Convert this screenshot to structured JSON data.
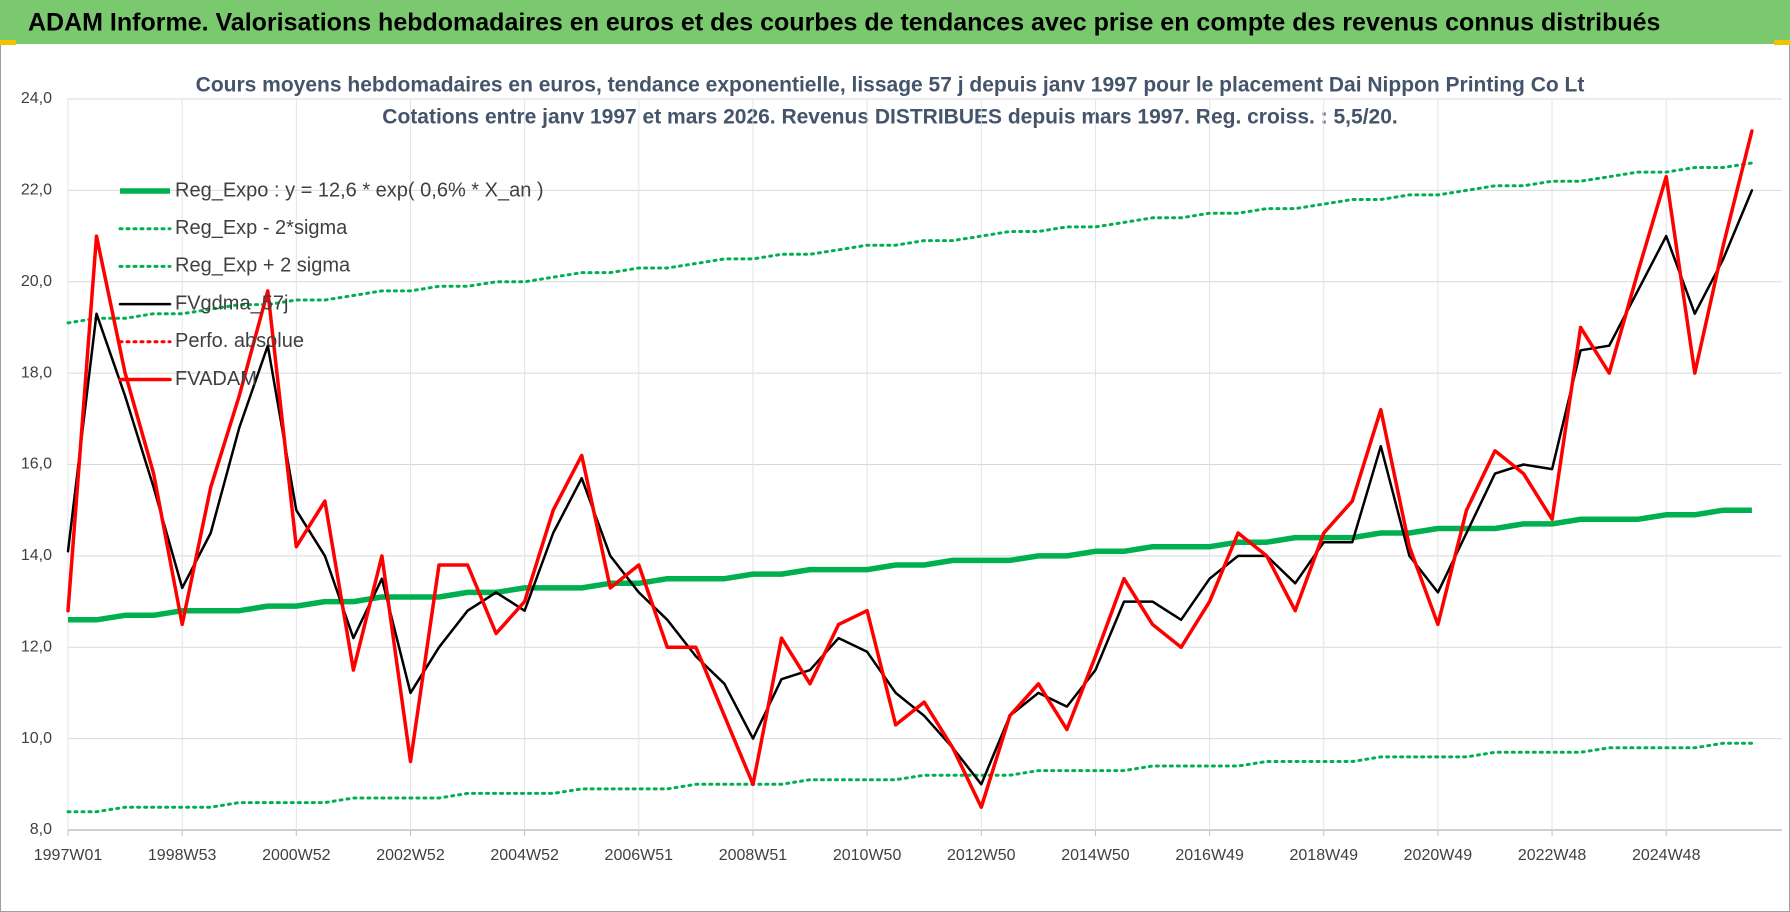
{
  "header": {
    "title": "ADAM Informe. Valorisations hebdomadaires en euros et des courbes de tendances avec prise en compte des revenus connus distribués"
  },
  "chart_data": {
    "type": "line",
    "title": "Cours moyens hebdomadaires en euros, tendance exponentielle, lissage 57 j depuis janv 1997  pour le placement Dai Nippon Printing Co Lt",
    "subtitle": "Cotations entre janv 1997 et mars 2026. Revenus DISTRIBUES depuis mars 1997.  Reg. croiss. : 5,5/20.",
    "categories": [
      "1997W01",
      null,
      null,
      null,
      "1998W53",
      null,
      null,
      null,
      "2000W52",
      null,
      null,
      null,
      "2002W52",
      null,
      null,
      null,
      "2004W52",
      null,
      null,
      null,
      "2006W51",
      null,
      null,
      null,
      "2008W51",
      null,
      null,
      null,
      "2010W50",
      null,
      null,
      null,
      "2012W50",
      null,
      null,
      null,
      "2014W50",
      null,
      null,
      null,
      "2016W49",
      null,
      null,
      null,
      "2018W49",
      null,
      null,
      null,
      "2020W49",
      null,
      null,
      null,
      "2022W48",
      null,
      null,
      null,
      "2024W48",
      null,
      null,
      null
    ],
    "ylim": [
      8,
      24
    ],
    "yticks": [
      {
        "value": 8,
        "label": "8,0"
      },
      {
        "value": 10,
        "label": "10,0"
      },
      {
        "value": 12,
        "label": "12,0"
      },
      {
        "value": 14,
        "label": "14,0"
      },
      {
        "value": 16,
        "label": "16,0"
      },
      {
        "value": 18,
        "label": "18,0"
      },
      {
        "value": 20,
        "label": "20,0"
      },
      {
        "value": 22,
        "label": "22,0"
      },
      {
        "value": 24,
        "label": "24,0"
      }
    ],
    "grid": true,
    "legend": "upper left",
    "series": [
      {
        "name": "Reg_Expo : y = 12,6 * exp( 0,6% *  X_an )",
        "color": "#00b050",
        "line_style": "solid",
        "values": [
          12.6,
          12.6,
          12.7,
          12.7,
          12.8,
          12.8,
          12.8,
          12.9,
          12.9,
          13.0,
          13.0,
          13.1,
          13.1,
          13.1,
          13.2,
          13.2,
          13.3,
          13.3,
          13.3,
          13.4,
          13.4,
          13.5,
          13.5,
          13.5,
          13.6,
          13.6,
          13.7,
          13.7,
          13.7,
          13.8,
          13.8,
          13.9,
          13.9,
          13.9,
          14.0,
          14.0,
          14.1,
          14.1,
          14.2,
          14.2,
          14.2,
          14.3,
          14.3,
          14.4,
          14.4,
          14.4,
          14.5,
          14.5,
          14.6,
          14.6,
          14.6,
          14.7,
          14.7,
          14.8,
          14.8,
          14.8,
          14.9,
          14.9,
          15.0,
          15.0
        ]
      },
      {
        "name": "Reg_Exp - 2*sigma",
        "color": "#00b050",
        "line_style": "dotted",
        "values": [
          8.4,
          8.4,
          8.5,
          8.5,
          8.5,
          8.5,
          8.6,
          8.6,
          8.6,
          8.6,
          8.7,
          8.7,
          8.7,
          8.7,
          8.8,
          8.8,
          8.8,
          8.8,
          8.9,
          8.9,
          8.9,
          8.9,
          9.0,
          9.0,
          9.0,
          9.0,
          9.1,
          9.1,
          9.1,
          9.1,
          9.2,
          9.2,
          9.2,
          9.2,
          9.3,
          9.3,
          9.3,
          9.3,
          9.4,
          9.4,
          9.4,
          9.4,
          9.5,
          9.5,
          9.5,
          9.5,
          9.6,
          9.6,
          9.6,
          9.6,
          9.7,
          9.7,
          9.7,
          9.7,
          9.8,
          9.8,
          9.8,
          9.8,
          9.9,
          9.9
        ]
      },
      {
        "name": "Reg_Exp + 2 sigma",
        "color": "#00b050",
        "line_style": "dotted",
        "values": [
          19.1,
          19.2,
          19.2,
          19.3,
          19.3,
          19.4,
          19.5,
          19.5,
          19.6,
          19.6,
          19.7,
          19.8,
          19.8,
          19.9,
          19.9,
          20.0,
          20.0,
          20.1,
          20.2,
          20.2,
          20.3,
          20.3,
          20.4,
          20.5,
          20.5,
          20.6,
          20.6,
          20.7,
          20.8,
          20.8,
          20.9,
          20.9,
          21.0,
          21.1,
          21.1,
          21.2,
          21.2,
          21.3,
          21.4,
          21.4,
          21.5,
          21.5,
          21.6,
          21.6,
          21.7,
          21.8,
          21.8,
          21.9,
          21.9,
          22.0,
          22.1,
          22.1,
          22.2,
          22.2,
          22.3,
          22.4,
          22.4,
          22.5,
          22.5,
          22.6
        ]
      },
      {
        "name": "FVgdma_57j",
        "color": "#000000",
        "line_style": "solid",
        "values": [
          14.1,
          19.3,
          17.5,
          15.5,
          13.3,
          14.5,
          16.8,
          18.6,
          15.0,
          14.0,
          12.2,
          13.5,
          11.0,
          12.0,
          12.8,
          13.2,
          12.8,
          14.5,
          15.7,
          14.0,
          13.2,
          12.6,
          11.8,
          11.2,
          10.0,
          11.3,
          11.5,
          12.2,
          11.9,
          11.0,
          10.5,
          9.8,
          9.0,
          10.5,
          11.0,
          10.7,
          11.5,
          13.0,
          13.0,
          12.6,
          13.5,
          14.0,
          14.0,
          13.4,
          14.3,
          14.3,
          16.4,
          14.0,
          13.2,
          14.5,
          15.8,
          16.0,
          15.9,
          18.5,
          18.6,
          19.8,
          21.0,
          19.3,
          20.5,
          22.0
        ]
      },
      {
        "name": "Perfo. absolue",
        "color": "#ff0000",
        "line_style": "dotted",
        "values": [
          null,
          null,
          null,
          null,
          null,
          null,
          null,
          null,
          null,
          null,
          null,
          null,
          null,
          null,
          null,
          null,
          null,
          null,
          null,
          null,
          null,
          null,
          null,
          null,
          null,
          null,
          null,
          null,
          null,
          null,
          null,
          null,
          null,
          null,
          null,
          null,
          null,
          null,
          null,
          null,
          null,
          null,
          null,
          null,
          null,
          null,
          null,
          null,
          null,
          null,
          null,
          null,
          null,
          null,
          null,
          null,
          null,
          null,
          null,
          null
        ]
      },
      {
        "name": "FVADAM",
        "color": "#ff0000",
        "line_style": "solid",
        "values": [
          12.8,
          21.0,
          18.0,
          15.8,
          12.5,
          15.5,
          17.5,
          19.8,
          14.2,
          15.2,
          11.5,
          14.0,
          9.5,
          13.8,
          13.8,
          12.3,
          13.0,
          15.0,
          16.2,
          13.3,
          13.8,
          12.0,
          12.0,
          10.5,
          9.0,
          12.2,
          11.2,
          12.5,
          12.8,
          10.3,
          10.8,
          9.8,
          8.5,
          10.5,
          11.2,
          10.2,
          11.8,
          13.5,
          12.5,
          12.0,
          13.0,
          14.5,
          14.0,
          12.8,
          14.5,
          15.2,
          17.2,
          14.2,
          12.5,
          15.0,
          16.3,
          15.8,
          14.8,
          19.0,
          18.0,
          20.2,
          22.3,
          18.0,
          20.8,
          23.3
        ]
      }
    ]
  }
}
